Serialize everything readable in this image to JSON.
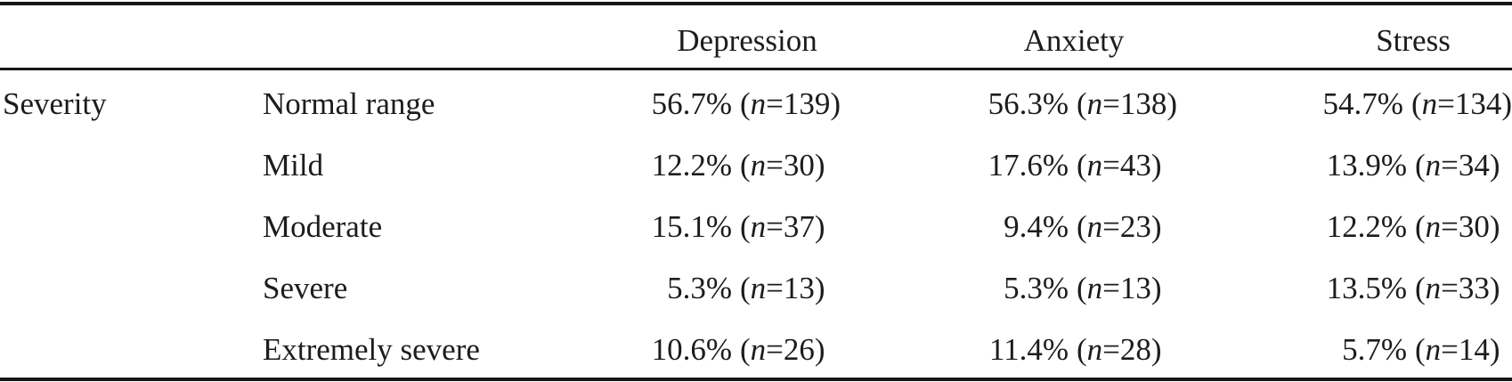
{
  "table": {
    "row_group_label": "Severity",
    "columns": [
      "Depression",
      "Anxiety",
      "Stress"
    ],
    "cell_format": {
      "open": "(",
      "var": "n",
      "eq": "=",
      "close": ")"
    },
    "rows": [
      {
        "label": "Normal range",
        "cells": [
          {
            "pct": "56.7%",
            "n": "139"
          },
          {
            "pct": "56.3%",
            "n": "138"
          },
          {
            "pct": "54.7%",
            "n": "134"
          }
        ]
      },
      {
        "label": "Mild",
        "cells": [
          {
            "pct": "12.2%",
            "n": "30"
          },
          {
            "pct": "17.6%",
            "n": "43"
          },
          {
            "pct": "13.9%",
            "n": "34"
          }
        ]
      },
      {
        "label": "Moderate",
        "cells": [
          {
            "pct": "15.1%",
            "n": "37"
          },
          {
            "pct": "9.4%",
            "n": "23"
          },
          {
            "pct": "12.2%",
            "n": "30"
          }
        ]
      },
      {
        "label": "Severe",
        "cells": [
          {
            "pct": "5.3%",
            "n": "13"
          },
          {
            "pct": "5.3%",
            "n": "13"
          },
          {
            "pct": "13.5%",
            "n": "33"
          }
        ]
      },
      {
        "label": "Extremely severe",
        "cells": [
          {
            "pct": "10.6%",
            "n": "26"
          },
          {
            "pct": "11.4%",
            "n": "28"
          },
          {
            "pct": "5.7%",
            "n": "14"
          }
        ]
      }
    ]
  },
  "colors": {
    "text": "#1c1c1c",
    "rule": "#161616",
    "background": "#ffffff"
  },
  "chart_data": {
    "type": "table",
    "title": "",
    "row_group": "Severity",
    "categories": [
      "Normal range",
      "Mild",
      "Moderate",
      "Severe",
      "Extremely severe"
    ],
    "series": [
      {
        "name": "Depression",
        "percent": [
          56.7,
          12.2,
          15.1,
          5.3,
          10.6
        ],
        "n": [
          139,
          30,
          37,
          13,
          26
        ]
      },
      {
        "name": "Anxiety",
        "percent": [
          56.3,
          17.6,
          9.4,
          5.3,
          11.4
        ],
        "n": [
          138,
          43,
          23,
          13,
          28
        ]
      },
      {
        "name": "Stress",
        "percent": [
          54.7,
          13.9,
          12.2,
          13.5,
          5.7
        ],
        "n": [
          134,
          34,
          30,
          33,
          14
        ]
      }
    ]
  }
}
